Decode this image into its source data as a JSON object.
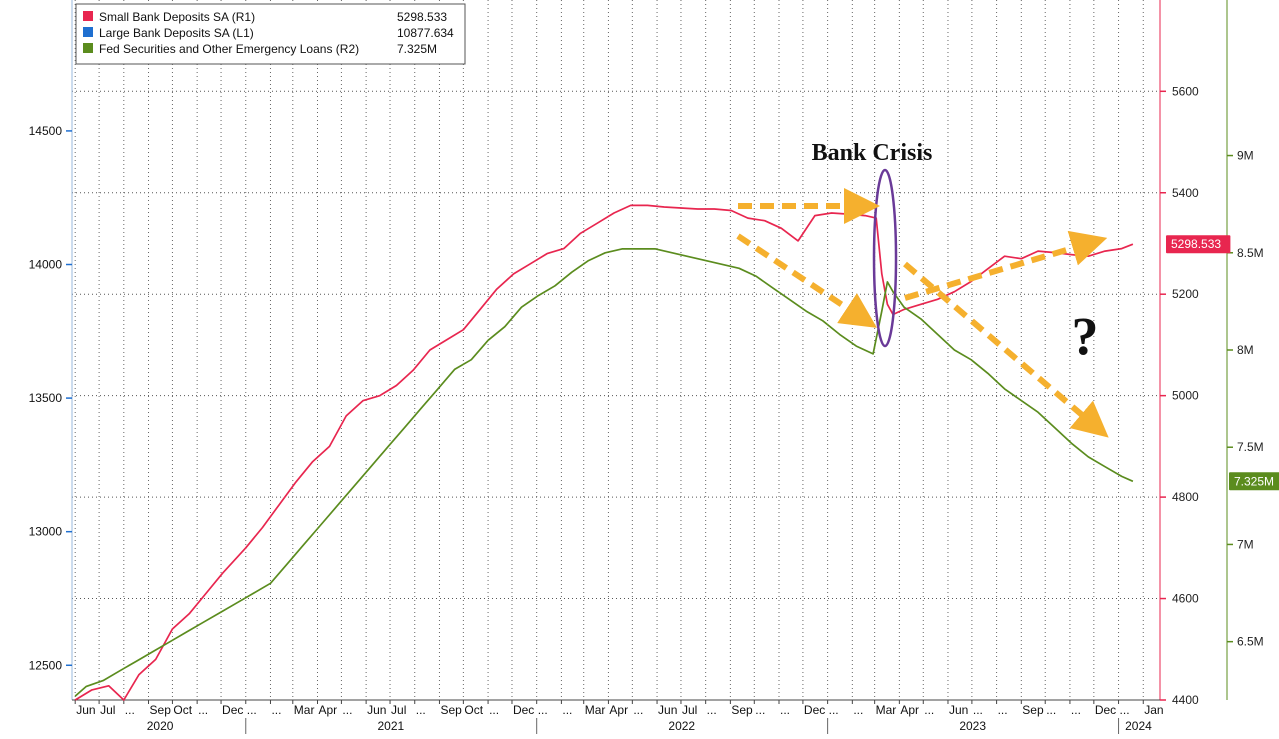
{
  "chart_data": {
    "type": "line",
    "x_axis": {
      "months": [
        "Jun",
        "Jul",
        "...",
        "Sep",
        "Oct",
        "...",
        "Dec",
        "...",
        "...",
        "Mar",
        "Apr",
        "...",
        "Jun",
        "Jul",
        "...",
        "Sep",
        "Oct",
        "...",
        "Dec",
        "...",
        "...",
        "Mar",
        "Apr",
        "...",
        "Jun",
        "Jul",
        "...",
        "Sep",
        "...",
        "...",
        "Dec",
        "...",
        "...",
        "Mar",
        "Apr",
        "...",
        "Jun",
        "...",
        "...",
        "Sep",
        "...",
        "...",
        "Dec",
        "...",
        "Jan"
      ],
      "years": [
        "2020",
        "2021",
        "2022",
        "2023",
        "2024"
      ]
    },
    "axes": {
      "L1": {
        "ticks": [
          "14500",
          "14000",
          "13500",
          "13000",
          "12500"
        ],
        "range": [
          12370,
          14990
        ],
        "color": "#1f6fd0"
      },
      "R1": {
        "ticks": [
          "5600",
          "5400",
          "5200",
          "5000",
          "4800",
          "4600",
          "4400"
        ],
        "range": [
          4400,
          5780
        ],
        "color": "#e8264f"
      },
      "R2": {
        "ticks": [
          "9M",
          "8.5M",
          "8M",
          "7.5M",
          "7M",
          "6.5M"
        ],
        "range": [
          6.2,
          9.8
        ],
        "unit": "M",
        "color": "#5b8c1e"
      }
    },
    "series": [
      {
        "name": "Small Bank Deposits SA (R1)",
        "axis": "R1",
        "color": "#e8264f",
        "last_value": "5298.533",
        "points": [
          [
            "2020-06-01",
            4400
          ],
          [
            "2020-06-22",
            4420
          ],
          [
            "2020-07-13",
            4428
          ],
          [
            "2020-08-01",
            4400
          ],
          [
            "2020-08-20",
            4450
          ],
          [
            "2020-09-10",
            4480
          ],
          [
            "2020-10-01",
            4540
          ],
          [
            "2020-10-22",
            4570
          ],
          [
            "2020-11-12",
            4610
          ],
          [
            "2020-12-03",
            4650
          ],
          [
            "2021-01-01",
            4700
          ],
          [
            "2021-01-22",
            4740
          ],
          [
            "2021-02-12",
            4785
          ],
          [
            "2021-03-05",
            4830
          ],
          [
            "2021-03-26",
            4870
          ],
          [
            "2021-04-16",
            4900
          ],
          [
            "2021-05-07",
            4960
          ],
          [
            "2021-05-28",
            4990
          ],
          [
            "2021-06-18",
            5000
          ],
          [
            "2021-07-09",
            5020
          ],
          [
            "2021-07-30",
            5050
          ],
          [
            "2021-08-20",
            5090
          ],
          [
            "2021-09-10",
            5110
          ],
          [
            "2021-10-01",
            5130
          ],
          [
            "2021-10-22",
            5170
          ],
          [
            "2021-11-12",
            5210
          ],
          [
            "2021-12-03",
            5240
          ],
          [
            "2021-12-24",
            5260
          ],
          [
            "2022-01-14",
            5280
          ],
          [
            "2022-02-04",
            5290
          ],
          [
            "2022-02-25",
            5320
          ],
          [
            "2022-03-18",
            5340
          ],
          [
            "2022-04-08",
            5360
          ],
          [
            "2022-04-29",
            5375
          ],
          [
            "2022-05-20",
            5375
          ],
          [
            "2022-06-10",
            5372
          ],
          [
            "2022-07-01",
            5370
          ],
          [
            "2022-07-22",
            5368
          ],
          [
            "2022-08-12",
            5368
          ],
          [
            "2022-09-02",
            5365
          ],
          [
            "2022-09-23",
            5350
          ],
          [
            "2022-10-14",
            5345
          ],
          [
            "2022-11-04",
            5330
          ],
          [
            "2022-11-25",
            5305
          ],
          [
            "2022-12-16",
            5355
          ],
          [
            "2023-01-06",
            5360
          ],
          [
            "2023-01-27",
            5358
          ],
          [
            "2023-02-17",
            5355
          ],
          [
            "2023-03-03",
            5350
          ],
          [
            "2023-03-10",
            5240
          ],
          [
            "2023-03-17",
            5180
          ],
          [
            "2023-03-24",
            5160
          ],
          [
            "2023-04-07",
            5170
          ],
          [
            "2023-04-28",
            5180
          ],
          [
            "2023-05-19",
            5190
          ],
          [
            "2023-06-09",
            5205
          ],
          [
            "2023-06-30",
            5225
          ],
          [
            "2023-07-21",
            5250
          ],
          [
            "2023-08-11",
            5275
          ],
          [
            "2023-09-01",
            5270
          ],
          [
            "2023-09-22",
            5285
          ],
          [
            "2023-10-13",
            5282
          ],
          [
            "2023-11-03",
            5278
          ],
          [
            "2023-11-24",
            5275
          ],
          [
            "2023-12-15",
            5285
          ],
          [
            "2024-01-05",
            5290
          ],
          [
            "2024-01-19",
            5298.533
          ]
        ]
      },
      {
        "name": "Large Bank Deposits SA (L1)",
        "axis": "L1",
        "color": "#1f6fd0",
        "last_value": "10877.634",
        "points": []
      },
      {
        "name": "Fed Securities and Other Emergency Loans (R2)",
        "axis": "R2",
        "color": "#5b8c1e",
        "last_value": "7.325M",
        "points": [
          [
            "2020-06-01",
            6.22
          ],
          [
            "2020-06-15",
            6.27
          ],
          [
            "2020-07-06",
            6.3
          ],
          [
            "2020-07-27",
            6.35
          ],
          [
            "2020-08-17",
            6.4
          ],
          [
            "2020-09-07",
            6.45
          ],
          [
            "2020-09-28",
            6.5
          ],
          [
            "2020-10-19",
            6.55
          ],
          [
            "2020-11-09",
            6.6
          ],
          [
            "2020-11-30",
            6.65
          ],
          [
            "2020-12-21",
            6.7
          ],
          [
            "2021-01-11",
            6.75
          ],
          [
            "2021-02-01",
            6.8
          ],
          [
            "2021-02-22",
            6.9
          ],
          [
            "2021-03-15",
            7.0
          ],
          [
            "2021-04-05",
            7.1
          ],
          [
            "2021-04-26",
            7.2
          ],
          [
            "2021-05-17",
            7.3
          ],
          [
            "2021-06-07",
            7.4
          ],
          [
            "2021-06-28",
            7.5
          ],
          [
            "2021-07-19",
            7.6
          ],
          [
            "2021-08-09",
            7.7
          ],
          [
            "2021-08-30",
            7.8
          ],
          [
            "2021-09-20",
            7.9
          ],
          [
            "2021-10-11",
            7.95
          ],
          [
            "2021-11-01",
            8.05
          ],
          [
            "2021-11-22",
            8.12
          ],
          [
            "2021-12-13",
            8.22
          ],
          [
            "2022-01-03",
            8.28
          ],
          [
            "2022-01-24",
            8.33
          ],
          [
            "2022-02-14",
            8.4
          ],
          [
            "2022-03-07",
            8.46
          ],
          [
            "2022-03-28",
            8.5
          ],
          [
            "2022-04-18",
            8.52
          ],
          [
            "2022-05-09",
            8.52
          ],
          [
            "2022-05-30",
            8.52
          ],
          [
            "2022-06-20",
            8.5
          ],
          [
            "2022-07-11",
            8.48
          ],
          [
            "2022-08-01",
            8.46
          ],
          [
            "2022-08-22",
            8.44
          ],
          [
            "2022-09-12",
            8.42
          ],
          [
            "2022-10-03",
            8.38
          ],
          [
            "2022-10-24",
            8.32
          ],
          [
            "2022-11-14",
            8.26
          ],
          [
            "2022-12-05",
            8.2
          ],
          [
            "2022-12-26",
            8.15
          ],
          [
            "2023-01-16",
            8.08
          ],
          [
            "2023-02-06",
            8.02
          ],
          [
            "2023-02-27",
            7.98
          ],
          [
            "2023-03-10",
            8.2
          ],
          [
            "2023-03-17",
            8.35
          ],
          [
            "2023-03-24",
            8.3
          ],
          [
            "2023-04-07",
            8.22
          ],
          [
            "2023-04-28",
            8.16
          ],
          [
            "2023-05-19",
            8.08
          ],
          [
            "2023-06-09",
            8.0
          ],
          [
            "2023-06-30",
            7.95
          ],
          [
            "2023-07-21",
            7.88
          ],
          [
            "2023-08-11",
            7.8
          ],
          [
            "2023-09-01",
            7.74
          ],
          [
            "2023-09-22",
            7.68
          ],
          [
            "2023-10-13",
            7.6
          ],
          [
            "2023-11-03",
            7.52
          ],
          [
            "2023-11-24",
            7.45
          ],
          [
            "2023-12-15",
            7.4
          ],
          [
            "2024-01-05",
            7.35
          ],
          [
            "2024-01-19",
            7.325
          ]
        ]
      }
    ],
    "annotations": {
      "crisis_label": "Bank Crisis",
      "question_mark": "?"
    },
    "grid": true,
    "legend_position": "top-left"
  }
}
